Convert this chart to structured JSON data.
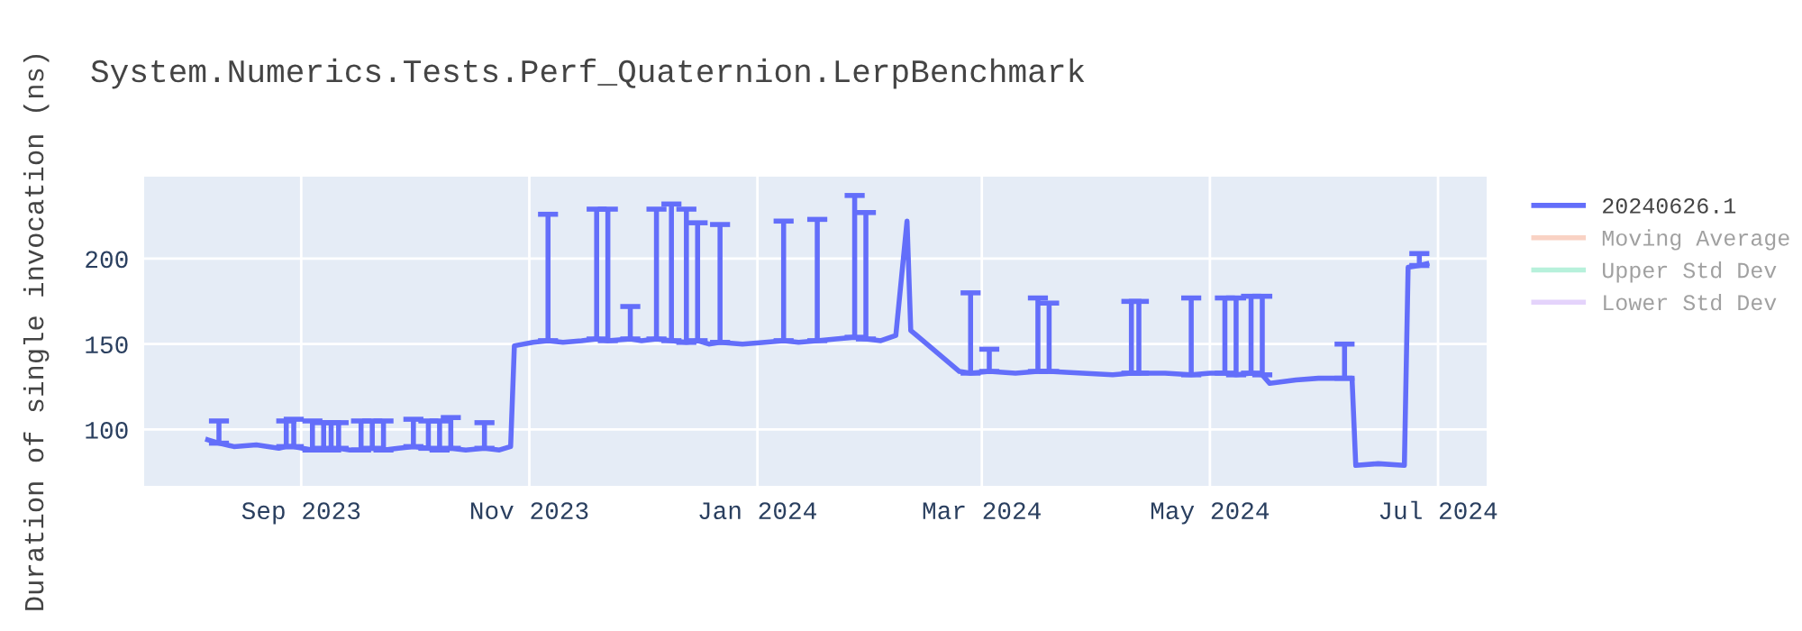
{
  "chart_data": {
    "type": "line",
    "title": "System.Numerics.Tests.Perf_Quaternion.LerpBenchmark",
    "ylabel": "Duration of single invocation (ns)",
    "xlim": [
      "2023-07-21",
      "2024-07-14"
    ],
    "xticks": [
      {
        "value": "2023-09-01",
        "label": "Sep 2023"
      },
      {
        "value": "2023-11-01",
        "label": "Nov 2023"
      },
      {
        "value": "2024-01-01",
        "label": "Jan 2024"
      },
      {
        "value": "2024-03-01",
        "label": "Mar 2024"
      },
      {
        "value": "2024-05-01",
        "label": "May 2024"
      },
      {
        "value": "2024-07-01",
        "label": "Jul 2024"
      }
    ],
    "ylim": [
      67,
      248
    ],
    "yticks": [
      100,
      150,
      200
    ],
    "grid": true,
    "legend": "right",
    "marker": "none",
    "line_style": "solid",
    "series": [
      {
        "name": "20240626.1",
        "color": "#636efa",
        "x": [
          "2023-08-07",
          "2023-08-10",
          "2023-08-14",
          "2023-08-20",
          "2023-08-26",
          "2023-08-28",
          "2023-08-30",
          "2023-09-04",
          "2023-09-07",
          "2023-09-09",
          "2023-09-11",
          "2023-09-14",
          "2023-09-17",
          "2023-09-20",
          "2023-09-23",
          "2023-09-27",
          "2023-10-01",
          "2023-10-05",
          "2023-10-08",
          "2023-10-11",
          "2023-10-15",
          "2023-10-20",
          "2023-10-24",
          "2023-10-27",
          "2023-10-28",
          "2023-11-02",
          "2023-11-06",
          "2023-11-10",
          "2023-11-15",
          "2023-11-19",
          "2023-11-22",
          "2023-11-28",
          "2023-12-01",
          "2023-12-05",
          "2023-12-09",
          "2023-12-13",
          "2023-12-16",
          "2023-12-19",
          "2023-12-22",
          "2023-12-28",
          "2024-01-03",
          "2024-01-08",
          "2024-01-12",
          "2024-01-17",
          "2024-01-22",
          "2024-01-27",
          "2024-01-30",
          "2024-02-03",
          "2024-02-07",
          "2024-02-10",
          "2024-02-11",
          "2024-02-24",
          "2024-02-27",
          "2024-03-03",
          "2024-03-10",
          "2024-03-16",
          "2024-03-19",
          "2024-03-28",
          "2024-04-05",
          "2024-04-10",
          "2024-04-12",
          "2024-04-19",
          "2024-04-26",
          "2024-05-01",
          "2024-05-05",
          "2024-05-08",
          "2024-05-12",
          "2024-05-15",
          "2024-05-17",
          "2024-05-24",
          "2024-05-30",
          "2024-06-06",
          "2024-06-08",
          "2024-06-09",
          "2024-06-15",
          "2024-06-22",
          "2024-06-23",
          "2024-06-26",
          "2024-06-28"
        ],
        "values": [
          94,
          92,
          90,
          91,
          89,
          90,
          90,
          88,
          89,
          88,
          89,
          88,
          88,
          89,
          88,
          89,
          90,
          89,
          88,
          89,
          88,
          89,
          88,
          90,
          149,
          151,
          152,
          151,
          152,
          153,
          152,
          153,
          152,
          153,
          152,
          151,
          152,
          150,
          151,
          150,
          151,
          152,
          151,
          152,
          153,
          154,
          153,
          152,
          155,
          222,
          158,
          134,
          133,
          134,
          133,
          134,
          134,
          133,
          132,
          133,
          133,
          133,
          132,
          133,
          133,
          132,
          133,
          132,
          127,
          129,
          130,
          130,
          130,
          79,
          80,
          79,
          195,
          196,
          197
        ],
        "errors": [
          null,
          [
            92,
            105
          ],
          null,
          null,
          null,
          [
            90,
            105
          ],
          [
            90,
            106
          ],
          [
            88,
            105
          ],
          [
            89,
            104
          ],
          [
            88,
            104
          ],
          [
            89,
            104
          ],
          null,
          [
            88,
            105
          ],
          [
            89,
            105
          ],
          [
            88,
            105
          ],
          null,
          [
            90,
            106
          ],
          [
            89,
            105
          ],
          [
            88,
            105
          ],
          [
            89,
            107
          ],
          null,
          [
            89,
            104
          ],
          null,
          null,
          null,
          null,
          [
            152,
            226
          ],
          null,
          null,
          [
            153,
            229
          ],
          [
            152,
            229
          ],
          [
            153,
            172
          ],
          null,
          [
            153,
            229
          ],
          [
            152,
            232
          ],
          [
            151,
            229
          ],
          [
            152,
            221
          ],
          null,
          [
            151,
            220
          ],
          null,
          null,
          [
            152,
            222
          ],
          null,
          [
            152,
            223
          ],
          null,
          [
            154,
            237
          ],
          [
            153,
            227
          ],
          null,
          null,
          null,
          null,
          null,
          [
            133,
            180
          ],
          [
            134,
            147
          ],
          null,
          [
            134,
            177
          ],
          [
            134,
            174
          ],
          null,
          null,
          [
            133,
            175
          ],
          [
            133,
            175
          ],
          null,
          [
            132,
            177
          ],
          null,
          [
            133,
            177
          ],
          [
            132,
            177
          ],
          [
            133,
            178
          ],
          [
            132,
            178
          ],
          null,
          null,
          null,
          [
            130,
            150
          ],
          null,
          null,
          null,
          null,
          null,
          [
            196,
            203
          ],
          null
        ]
      },
      {
        "name": "Moving Average",
        "color": "#f4a58a"
      },
      {
        "name": "Upper Std Dev",
        "color": "#6fe3b8"
      },
      {
        "name": "Lower Std Dev",
        "color": "#c9a8f7"
      }
    ]
  }
}
